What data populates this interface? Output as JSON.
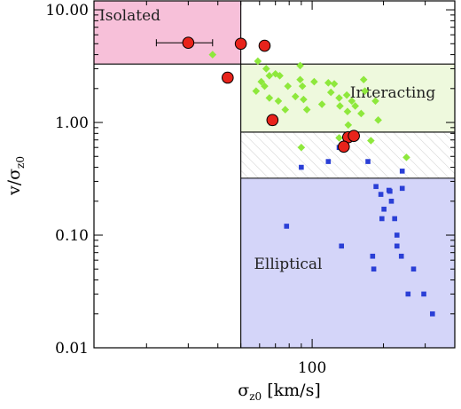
{
  "chart_data": {
    "type": "scatter",
    "title": "",
    "xlabel": {
      "main": "σ",
      "sub": "z0",
      "rest": " [km/s]"
    },
    "ylabel": {
      "main": "v/σ",
      "sub": "z0"
    },
    "x_scale": "log",
    "y_scale": "log",
    "xlim": [
      12,
      400
    ],
    "ylim": [
      0.01,
      12
    ],
    "x_ticks": [
      {
        "value": 100,
        "label": "100"
      }
    ],
    "y_ticks": [
      {
        "value": 10,
        "label": "10.00"
      },
      {
        "value": 1,
        "label": "1.00"
      },
      {
        "value": 0.1,
        "label": "0.10"
      },
      {
        "value": 0.01,
        "label": "0.01"
      }
    ],
    "grid": false,
    "colors": {
      "isolated": "#f7c0d9",
      "interacting": "#eef9dd",
      "elliptical": "#d4d5f9",
      "hatch": "#c8c8c8",
      "red_points": "#e8231b",
      "green_points": "#8ee83c",
      "blue_points": "#2a3fd6"
    },
    "regions": [
      {
        "name": "Isolated",
        "x": [
          12,
          50
        ],
        "y": [
          3.3,
          12
        ]
      },
      {
        "name": "Interacting",
        "x": [
          50,
          400
        ],
        "y": [
          0.82,
          3.3
        ]
      },
      {
        "name": "hatched",
        "x": [
          50,
          400
        ],
        "y": [
          0.32,
          0.82
        ]
      },
      {
        "name": "Elliptical",
        "x": [
          50,
          400
        ],
        "y": [
          0.01,
          0.32
        ]
      }
    ],
    "lines": [
      {
        "orientation": "vertical",
        "value": 50
      },
      {
        "orientation": "horizontal",
        "value": 3.3,
        "from": 12,
        "to": 400
      },
      {
        "orientation": "horizontal",
        "value": 0.82,
        "from": 50,
        "to": 400
      },
      {
        "orientation": "horizontal",
        "value": 0.32,
        "from": 50,
        "to": 400
      }
    ],
    "series": [
      {
        "marker": "circle",
        "color": "#e8231b",
        "points": [
          {
            "x": 30,
            "y": 5.1,
            "xerr": [
              22,
              38
            ]
          },
          {
            "x": 50,
            "y": 5.0
          },
          {
            "x": 63,
            "y": 4.8
          },
          {
            "x": 44,
            "y": 2.5
          },
          {
            "x": 68,
            "y": 1.05,
            "yerr": [
              0.95,
              1.15
            ]
          },
          {
            "x": 142,
            "y": 0.74
          },
          {
            "x": 150,
            "y": 0.76
          },
          {
            "x": 136,
            "y": 0.61
          }
        ]
      },
      {
        "marker": "diamond",
        "color": "#8ee83c",
        "points": [
          {
            "x": 38,
            "y": 4.0
          },
          {
            "x": 59,
            "y": 3.5
          },
          {
            "x": 64,
            "y": 3.0
          },
          {
            "x": 66,
            "y": 2.6
          },
          {
            "x": 70,
            "y": 2.7
          },
          {
            "x": 73,
            "y": 2.6
          },
          {
            "x": 61,
            "y": 2.3
          },
          {
            "x": 63,
            "y": 2.1
          },
          {
            "x": 58,
            "y": 1.9
          },
          {
            "x": 66,
            "y": 1.65
          },
          {
            "x": 72,
            "y": 1.55
          },
          {
            "x": 79,
            "y": 2.1
          },
          {
            "x": 89,
            "y": 3.2
          },
          {
            "x": 89,
            "y": 2.4
          },
          {
            "x": 91,
            "y": 2.1
          },
          {
            "x": 85,
            "y": 1.7
          },
          {
            "x": 92,
            "y": 1.6
          },
          {
            "x": 77,
            "y": 1.3
          },
          {
            "x": 95,
            "y": 1.3
          },
          {
            "x": 102,
            "y": 2.3
          },
          {
            "x": 110,
            "y": 1.45
          },
          {
            "x": 117,
            "y": 2.25
          },
          {
            "x": 124,
            "y": 2.2
          },
          {
            "x": 120,
            "y": 1.85
          },
          {
            "x": 130,
            "y": 1.65
          },
          {
            "x": 131,
            "y": 1.4
          },
          {
            "x": 140,
            "y": 1.75
          },
          {
            "x": 147,
            "y": 1.55
          },
          {
            "x": 152,
            "y": 1.4
          },
          {
            "x": 141,
            "y": 1.25
          },
          {
            "x": 165,
            "y": 2.4
          },
          {
            "x": 167,
            "y": 1.9
          },
          {
            "x": 161,
            "y": 1.2
          },
          {
            "x": 185,
            "y": 1.55
          },
          {
            "x": 190,
            "y": 1.05
          },
          {
            "x": 142,
            "y": 0.95
          },
          {
            "x": 130,
            "y": 0.73
          },
          {
            "x": 90,
            "y": 0.6
          },
          {
            "x": 177,
            "y": 0.69
          },
          {
            "x": 250,
            "y": 0.49
          }
        ]
      },
      {
        "marker": "square",
        "color": "#2a3fd6",
        "points": [
          {
            "x": 90,
            "y": 0.4
          },
          {
            "x": 117,
            "y": 0.45
          },
          {
            "x": 130,
            "y": 0.6
          },
          {
            "x": 172,
            "y": 0.45
          },
          {
            "x": 186,
            "y": 0.27
          },
          {
            "x": 195,
            "y": 0.23
          },
          {
            "x": 201,
            "y": 0.17
          },
          {
            "x": 211,
            "y": 0.25
          },
          {
            "x": 213,
            "y": 0.245
          },
          {
            "x": 197,
            "y": 0.14
          },
          {
            "x": 216,
            "y": 0.2
          },
          {
            "x": 223,
            "y": 0.14
          },
          {
            "x": 240,
            "y": 0.37
          },
          {
            "x": 240,
            "y": 0.26
          },
          {
            "x": 228,
            "y": 0.1
          },
          {
            "x": 228,
            "y": 0.08
          },
          {
            "x": 78,
            "y": 0.12
          },
          {
            "x": 133,
            "y": 0.08
          },
          {
            "x": 180,
            "y": 0.065
          },
          {
            "x": 182,
            "y": 0.05
          },
          {
            "x": 238,
            "y": 0.065
          },
          {
            "x": 254,
            "y": 0.03
          },
          {
            "x": 268,
            "y": 0.05
          },
          {
            "x": 296,
            "y": 0.03
          },
          {
            "x": 322,
            "y": 0.02
          }
        ]
      }
    ]
  }
}
